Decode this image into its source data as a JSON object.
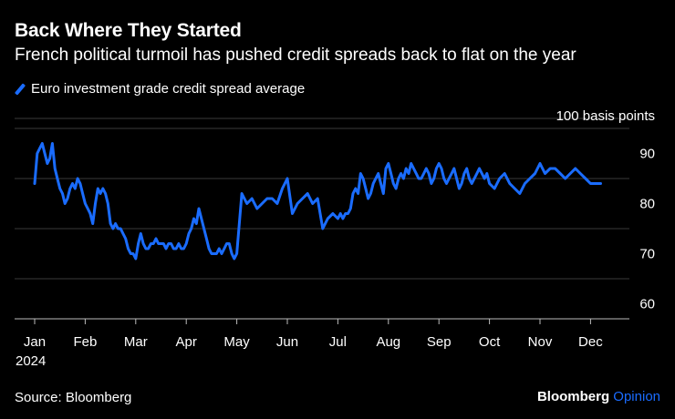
{
  "title": "Back Where They Started",
  "subtitle": "French political turmoil has pushed credit spreads back to flat on the year",
  "legend": {
    "label": "Euro investment grade credit spread average",
    "color": "#1a6cff"
  },
  "source": "Source: Bloomberg",
  "brand": {
    "part1": "Bloomberg",
    "part2": "Opinion"
  },
  "chart_data": {
    "type": "line",
    "title": "Back Where They Started",
    "ylabel": "100 basis points",
    "ylim": [
      57,
      97
    ],
    "yticks": [
      60,
      70,
      80,
      90
    ],
    "grid": true,
    "year_label": "2024",
    "months": [
      "Jan",
      "Feb",
      "Mar",
      "Apr",
      "May",
      "Jun",
      "Jul",
      "Aug",
      "Sep",
      "Oct",
      "Nov",
      "Dec"
    ],
    "series": [
      {
        "name": "Euro investment grade credit spread average",
        "color": "#1a6cff",
        "x": [
          0,
          0.05,
          0.1,
          0.15,
          0.2,
          0.25,
          0.3,
          0.35,
          0.4,
          0.45,
          0.5,
          0.55,
          0.6,
          0.65,
          0.7,
          0.75,
          0.8,
          0.85,
          0.9,
          0.95,
          1.0,
          1.05,
          1.1,
          1.15,
          1.2,
          1.25,
          1.3,
          1.35,
          1.4,
          1.45,
          1.5,
          1.55,
          1.6,
          1.65,
          1.7,
          1.75,
          1.8,
          1.85,
          1.9,
          1.95,
          2.0,
          2.05,
          2.1,
          2.15,
          2.2,
          2.25,
          2.3,
          2.35,
          2.4,
          2.45,
          2.5,
          2.55,
          2.6,
          2.65,
          2.7,
          2.75,
          2.8,
          2.85,
          2.9,
          2.95,
          3.0,
          3.05,
          3.1,
          3.15,
          3.2,
          3.25,
          3.3,
          3.35,
          3.4,
          3.45,
          3.5,
          3.55,
          3.6,
          3.65,
          3.7,
          3.75,
          3.8,
          3.85,
          3.9,
          3.95,
          4.0,
          4.1,
          4.2,
          4.3,
          4.4,
          4.5,
          4.6,
          4.7,
          4.8,
          4.9,
          5.0,
          5.1,
          5.2,
          5.3,
          5.4,
          5.5,
          5.6,
          5.7,
          5.8,
          5.9,
          6.0,
          6.05,
          6.1,
          6.15,
          6.2,
          6.25,
          6.3,
          6.35,
          6.4,
          6.45,
          6.5,
          6.55,
          6.6,
          6.65,
          6.7,
          6.75,
          6.8,
          6.85,
          6.9,
          6.95,
          7.0,
          7.05,
          7.1,
          7.15,
          7.2,
          7.25,
          7.3,
          7.35,
          7.4,
          7.45,
          7.5,
          7.55,
          7.6,
          7.65,
          7.7,
          7.75,
          7.8,
          7.85,
          7.9,
          7.95,
          8.0,
          8.05,
          8.1,
          8.15,
          8.2,
          8.25,
          8.3,
          8.35,
          8.4,
          8.45,
          8.5,
          8.55,
          8.6,
          8.65,
          8.7,
          8.75,
          8.8,
          8.85,
          8.9,
          8.95,
          9.0,
          9.1,
          9.2,
          9.3,
          9.4,
          9.5,
          9.6,
          9.7,
          9.8,
          9.9,
          10.0,
          10.1,
          10.2,
          10.3,
          10.4,
          10.5,
          10.6,
          10.7,
          10.8,
          10.9,
          11.0,
          11.1,
          11.2
        ],
        "values": [
          84,
          90,
          91,
          92,
          90,
          88,
          89,
          92,
          87,
          85,
          83,
          82,
          80,
          81,
          83,
          84,
          83,
          85,
          84,
          82,
          80,
          79,
          78,
          76,
          80,
          83,
          82,
          83,
          82,
          80,
          76,
          75,
          76,
          75,
          75,
          74,
          73,
          71,
          70,
          70,
          69,
          72,
          74,
          72,
          71,
          71,
          72,
          72,
          73,
          72,
          72,
          72,
          71,
          72,
          72,
          71,
          71,
          72,
          71,
          71,
          72,
          74,
          75,
          77,
          76,
          79,
          77,
          75,
          73,
          71,
          70,
          70,
          70,
          71,
          70,
          71,
          72,
          72,
          70,
          69,
          70,
          82,
          80,
          81,
          79,
          80,
          81,
          81,
          80,
          83,
          85,
          78,
          80,
          81,
          82,
          80,
          81,
          75,
          77,
          78,
          77,
          78,
          77,
          78,
          78,
          79,
          82,
          83,
          82,
          86,
          85,
          83,
          81,
          82,
          84,
          85,
          86,
          84,
          82,
          87,
          88,
          86,
          84,
          83,
          85,
          86,
          85,
          87,
          86,
          88,
          87,
          86,
          85,
          85,
          86,
          87,
          86,
          84,
          85,
          87,
          88,
          87,
          85,
          84,
          85,
          86,
          87,
          85,
          83,
          84,
          86,
          87,
          85,
          84,
          85,
          86,
          87,
          86,
          85,
          86,
          84,
          83,
          85,
          86,
          84,
          83,
          82,
          84,
          85,
          86,
          88,
          86,
          87,
          87,
          86,
          85,
          86,
          87,
          86,
          85,
          84,
          84,
          84
        ]
      }
    ]
  }
}
